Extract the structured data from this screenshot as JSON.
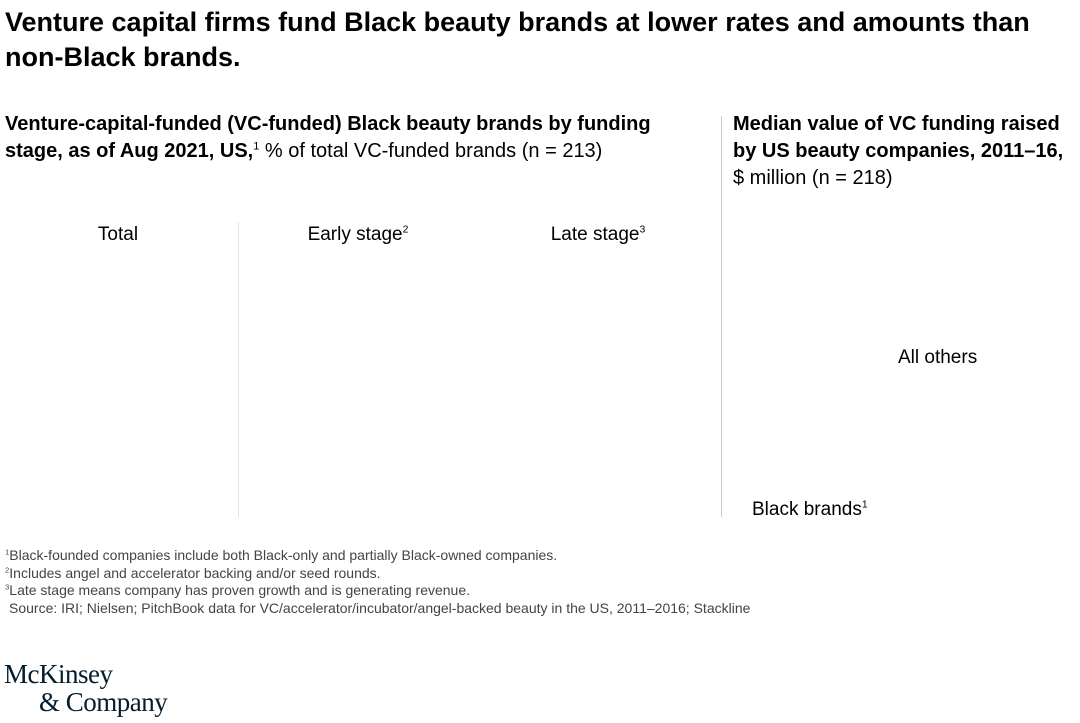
{
  "header": {
    "title": "Venture capital firms fund Black beauty brands at lower rates and amounts than non-Black brands."
  },
  "left_panel": {
    "heading_bold": "Venture-capital-funded (VC-funded) Black beauty brands by funding stage, as of Aug 2021, US,",
    "heading_sup": "1",
    "heading_rest": "% of total VC-funded brands (n = 213)",
    "columns": [
      {
        "label": "Total"
      },
      {
        "label": "Early stage",
        "sup": "2"
      },
      {
        "label": "Late stage",
        "sup": "3"
      }
    ]
  },
  "right_panel": {
    "heading_bold": "Median value of VC funding raised by US beauty companies, 2011–16,",
    "heading_rest": "$ million (n = 218)",
    "labels": [
      {
        "label": "All others"
      },
      {
        "label": "Black brands",
        "sup": "1"
      }
    ]
  },
  "footnotes": [
    {
      "sup": "1",
      "text": "Black-founded companies include both Black-only and partially Black-owned companies."
    },
    {
      "sup": "2",
      "text": "Includes angel and accelerator backing and/or seed rounds."
    },
    {
      "sup": "3",
      "text": "Late stage means company has proven growth and is generating revenue."
    }
  ],
  "source": "Source: IRI; Nielsen; PitchBook data for VC/accelerator/incubator/angel-backed beauty in the US, 2011–2016; Stackline",
  "logo": {
    "line1": "McKinsey",
    "line2": "& Company"
  }
}
